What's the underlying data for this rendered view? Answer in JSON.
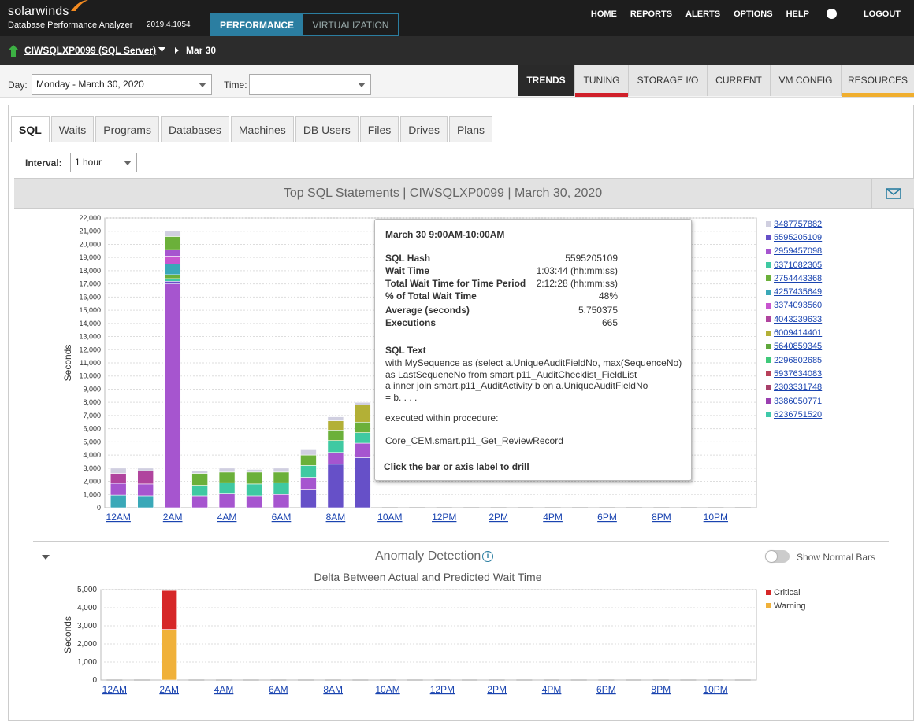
{
  "header": {
    "brand": "solarwinds",
    "product": "Database Performance Analyzer",
    "version": "2019.4.1054",
    "nav_tabs": [
      "PERFORMANCE",
      "VIRTUALIZATION"
    ],
    "menu": [
      "HOME",
      "REPORTS",
      "ALERTS",
      "OPTIONS",
      "HELP",
      "LOGOUT"
    ]
  },
  "serverbar": {
    "server": "CIWSQLXP0099 (SQL Server)",
    "date": "Mar 30"
  },
  "filters": {
    "day_label": "Day:",
    "day_value": "Monday - March 30, 2020",
    "time_label": "Time:",
    "time_value": ""
  },
  "view_tabs": [
    {
      "label": "TRENDS",
      "active": true,
      "indicator": ""
    },
    {
      "label": "TUNING",
      "active": false,
      "indicator": "#d0202a"
    },
    {
      "label": "STORAGE I/O",
      "active": false,
      "indicator": ""
    },
    {
      "label": "CURRENT",
      "active": false,
      "indicator": ""
    },
    {
      "label": "VM CONFIG",
      "active": false,
      "indicator": ""
    },
    {
      "label": "RESOURCES",
      "active": false,
      "indicator": "#f0ae2e"
    }
  ],
  "sub_tabs": [
    "SQL",
    "Waits",
    "Programs",
    "Databases",
    "Machines",
    "DB Users",
    "Files",
    "Drives",
    "Plans"
  ],
  "interval": {
    "label": "Interval:",
    "value": "1 hour"
  },
  "chart_header": "Top SQL Statements   |   CIWSQLXP0099   |   March 30, 2020",
  "colors": {
    "brand_blue": "#2b7ea1",
    "dark_bg": "#1d1d1d",
    "link": "#1a44b0"
  },
  "chart_data": [
    {
      "type": "bar",
      "stacked": true,
      "ylabel": "Seconds",
      "ylim": [
        0,
        22000
      ],
      "yticks": [
        "0",
        "1,000",
        "2,000",
        "3,000",
        "4,000",
        "5,000",
        "6,000",
        "7,000",
        "8,000",
        "9,000",
        "10,000",
        "11,000",
        "12,000",
        "13,000",
        "14,000",
        "15,000",
        "16,000",
        "17,000",
        "18,000",
        "19,000",
        "20,000",
        "21,000",
        "22,000"
      ],
      "xticks": [
        "12AM",
        "2AM",
        "4AM",
        "6AM",
        "8AM",
        "10AM",
        "12PM",
        "2PM",
        "4PM",
        "6PM",
        "8PM",
        "10PM"
      ],
      "grid": true,
      "legend_position": "right",
      "legend": [
        {
          "name": "3487757882",
          "color": "#d0cfe0"
        },
        {
          "name": "5595205109",
          "color": "#6650c8"
        },
        {
          "name": "2959457098",
          "color": "#a655cf"
        },
        {
          "name": "6371082305",
          "color": "#3fc9a2"
        },
        {
          "name": "2754443368",
          "color": "#6bb03a"
        },
        {
          "name": "4257435649",
          "color": "#3aa8b8"
        },
        {
          "name": "3374093560",
          "color": "#c855cf"
        },
        {
          "name": "4043239633",
          "color": "#b0449e"
        },
        {
          "name": "6009414401",
          "color": "#b3b036"
        },
        {
          "name": "5640859345",
          "color": "#5fa83c"
        },
        {
          "name": "2296802685",
          "color": "#3fc97a"
        },
        {
          "name": "5937634083",
          "color": "#b8405a"
        },
        {
          "name": "2303331748",
          "color": "#a8406a"
        },
        {
          "name": "3386050771",
          "color": "#9a3fb0"
        },
        {
          "name": "6236751520",
          "color": "#3fc9aa"
        }
      ],
      "hours": [
        0,
        1,
        2,
        3,
        4,
        5,
        6,
        7,
        8,
        9
      ],
      "stacks": [
        [
          {
            "v": 950,
            "c": "#3aa8b8"
          },
          {
            "v": 900,
            "c": "#a655cf"
          },
          {
            "v": 750,
            "c": "#b0449e"
          },
          {
            "v": 400,
            "c": "#d0cfe0"
          }
        ],
        [
          {
            "v": 900,
            "c": "#3aa8b8"
          },
          {
            "v": 900,
            "c": "#a655cf"
          },
          {
            "v": 1000,
            "c": "#b0449e"
          },
          {
            "v": 200,
            "c": "#d0cfe0"
          }
        ],
        [
          {
            "v": 17000,
            "c": "#a655cf"
          },
          {
            "v": 200,
            "c": "#6650c8"
          },
          {
            "v": 200,
            "c": "#3fc9a2"
          },
          {
            "v": 300,
            "c": "#6bb03a"
          },
          {
            "v": 800,
            "c": "#3aa8b8"
          },
          {
            "v": 600,
            "c": "#c855cf"
          },
          {
            "v": 500,
            "c": "#a655cf"
          },
          {
            "v": 1000,
            "c": "#6bb03a"
          },
          {
            "v": 400,
            "c": "#d0cfe0"
          }
        ],
        [
          {
            "v": 900,
            "c": "#a655cf"
          },
          {
            "v": 800,
            "c": "#3fc9a2"
          },
          {
            "v": 900,
            "c": "#6bb03a"
          },
          {
            "v": 200,
            "c": "#d0cfe0"
          }
        ],
        [
          {
            "v": 1100,
            "c": "#a655cf"
          },
          {
            "v": 800,
            "c": "#3fc9a2"
          },
          {
            "v": 800,
            "c": "#6bb03a"
          },
          {
            "v": 300,
            "c": "#d0cfe0"
          }
        ],
        [
          {
            "v": 900,
            "c": "#a655cf"
          },
          {
            "v": 900,
            "c": "#3fc9a2"
          },
          {
            "v": 900,
            "c": "#6bb03a"
          },
          {
            "v": 200,
            "c": "#d0cfe0"
          }
        ],
        [
          {
            "v": 1000,
            "c": "#a655cf"
          },
          {
            "v": 900,
            "c": "#3fc9a2"
          },
          {
            "v": 800,
            "c": "#6bb03a"
          },
          {
            "v": 300,
            "c": "#d0cfe0"
          }
        ],
        [
          {
            "v": 1400,
            "c": "#6650c8"
          },
          {
            "v": 900,
            "c": "#a655cf"
          },
          {
            "v": 900,
            "c": "#3fc9a2"
          },
          {
            "v": 800,
            "c": "#6bb03a"
          },
          {
            "v": 400,
            "c": "#d0cfe0"
          }
        ],
        [
          {
            "v": 3300,
            "c": "#6650c8"
          },
          {
            "v": 900,
            "c": "#a655cf"
          },
          {
            "v": 900,
            "c": "#3fc9a2"
          },
          {
            "v": 800,
            "c": "#6bb03a"
          },
          {
            "v": 700,
            "c": "#b3b036"
          },
          {
            "v": 300,
            "c": "#d0cfe0"
          }
        ],
        [
          {
            "v": 3800,
            "c": "#6650c8"
          },
          {
            "v": 1100,
            "c": "#a655cf"
          },
          {
            "v": 800,
            "c": "#3fc9a2"
          },
          {
            "v": 800,
            "c": "#6bb03a"
          },
          {
            "v": 1300,
            "c": "#b3b036"
          },
          {
            "v": 200,
            "c": "#d0cfe0"
          }
        ]
      ]
    },
    {
      "type": "bar",
      "stacked": true,
      "title": "Delta Between Actual and Predicted Wait Time",
      "ylabel": "Seconds",
      "ylim": [
        0,
        5000
      ],
      "yticks": [
        "0",
        "1,000",
        "2,000",
        "3,000",
        "4,000",
        "5,000"
      ],
      "xticks": [
        "12AM",
        "2AM",
        "4AM",
        "6AM",
        "8AM",
        "10AM",
        "12PM",
        "2PM",
        "4PM",
        "6PM",
        "8PM",
        "10PM"
      ],
      "series": [
        {
          "name": "Critical",
          "color": "#d62728"
        },
        {
          "name": "Warning",
          "color": "#f0b13a"
        }
      ],
      "hours": [
        2
      ],
      "stacks": [
        [
          {
            "v": 2800,
            "c": "#f0b13a"
          },
          {
            "v": 2150,
            "c": "#d62728"
          }
        ]
      ]
    }
  ],
  "tooltip": {
    "title": "March 30 9:00AM-10:00AM",
    "rows": [
      {
        "k": "SQL Hash",
        "v": "5595205109"
      },
      {
        "k": "Wait Time",
        "v": "1:03:44 (hh:mm:ss)"
      },
      {
        "k": "Total Wait Time for Time Period",
        "v": "2:12:28 (hh:mm:ss)"
      },
      {
        "k": "% of Total Wait Time",
        "v": "48%"
      },
      {
        "k": "Average (seconds)",
        "v": "5.750375"
      },
      {
        "k": "Executions",
        "v": "665"
      }
    ],
    "sql_label": "SQL Text",
    "sql_lines": [
      "with MySequence as (select a.UniqueAuditFieldNo, max(SequenceNo)",
      "as LastSequeneNo from smart.p11_AuditChecklist_FieldList",
      "a inner join smart.p11_AuditActivity b on a.UniqueAuditFieldNo",
      "= b. . . ."
    ],
    "exec_label": "executed within procedure:",
    "procedure": "Core_CEM.smart.p11_Get_ReviewRecord",
    "footer": "Click the bar or axis label to drill"
  },
  "anomaly": {
    "title": "Anomaly Detection",
    "toggle_label": "Show Normal Bars"
  }
}
